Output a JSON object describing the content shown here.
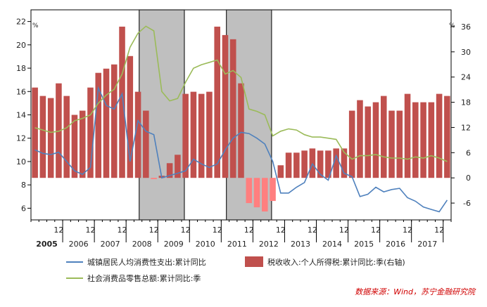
{
  "chart_data": {
    "type": "bar+line",
    "left_axis": {
      "unit": "%",
      "range": [
        5,
        23
      ],
      "ticks": [
        6,
        8,
        10,
        12,
        14,
        16,
        18,
        20,
        22
      ]
    },
    "right_axis": {
      "unit": "%",
      "range": [
        -10,
        40
      ],
      "ticks": [
        -6,
        0,
        6,
        12,
        18,
        24,
        30,
        36
      ]
    },
    "x_month_label": "12",
    "years": [
      "2005",
      "2006",
      "2007",
      "2008",
      "2009",
      "2010",
      "2011",
      "2012",
      "2013",
      "2014",
      "2015",
      "2016",
      "2017"
    ],
    "shaded_periods": [
      {
        "from_index": 14,
        "to_index": 18
      },
      {
        "from_index": 25,
        "to_index": 29
      }
    ],
    "series": [
      {
        "name": "税收收入:个人所得税:累计同比:季(右轴)",
        "kind": "bar",
        "axis": "right",
        "color": "#c0504d",
        "negative_color": "#ff7f7f",
        "values": [
          21.5,
          19.5,
          19.0,
          22.5,
          19.5,
          15.0,
          16.0,
          21.5,
          25.0,
          26.0,
          27.0,
          36.0,
          29.0,
          20.5,
          16.0,
          -0.3,
          0.5,
          3.5,
          5.5,
          20.0,
          20.5,
          20.0,
          20.5,
          36.0,
          34.0,
          33.0,
          22.5,
          -6.0,
          -7.0,
          -8.0,
          -5.5,
          3.0,
          6.0,
          6.0,
          6.5,
          7.0,
          6.5,
          6.5,
          7.0,
          7.0,
          16.0,
          18.5,
          17.0,
          18.0,
          19.5,
          16.0,
          16.0,
          20.0,
          18.0,
          18.0,
          18.0,
          20.0,
          19.5
        ]
      },
      {
        "name": "城镇居民人均消费性支出:累计同比",
        "kind": "line",
        "axis": "left",
        "color": "#4f81bd",
        "values": [
          11.0,
          10.7,
          10.6,
          10.8,
          10.0,
          9.2,
          8.9,
          9.5,
          16.3,
          14.8,
          14.5,
          15.8,
          10.0,
          13.5,
          12.6,
          12.3,
          8.6,
          8.8,
          9.0,
          9.2,
          10.2,
          9.8,
          9.5,
          9.8,
          11.0,
          12.0,
          12.5,
          12.4,
          12.0,
          11.5,
          10.0,
          7.3,
          7.3,
          7.8,
          8.2,
          9.8,
          8.9,
          8.4,
          10.5,
          9.0,
          8.7,
          7.0,
          7.2,
          7.8,
          7.4,
          7.6,
          7.7,
          6.9,
          6.6,
          6.1,
          5.9,
          5.7,
          6.7
        ]
      },
      {
        "name": "社会消费品零售总额:累计同比:季",
        "kind": "line",
        "axis": "left",
        "color": "#9bbb59",
        "values": [
          12.9,
          12.7,
          12.5,
          12.6,
          12.9,
          13.5,
          13.7,
          14.0,
          15.0,
          15.7,
          16.2,
          17.5,
          19.8,
          21.0,
          21.6,
          21.2,
          16.0,
          15.2,
          15.4,
          16.8,
          18.0,
          18.3,
          18.5,
          18.7,
          17.5,
          17.8,
          17.2,
          14.5,
          14.3,
          14.0,
          12.2,
          12.6,
          12.8,
          12.7,
          12.3,
          12.1,
          12.1,
          12.0,
          11.9,
          10.8,
          10.2,
          10.5,
          10.5,
          10.6,
          10.4,
          10.3,
          10.3,
          10.2,
          10.4,
          10.3,
          10.5,
          10.3,
          10.0
        ]
      }
    ],
    "legend": [
      {
        "label": "城镇居民人均消费性支出:累计同比",
        "kind": "line",
        "color": "#4f81bd"
      },
      {
        "label": "税收收入:个人所得税:累计同比:季(右轴)",
        "kind": "bar",
        "color": "#c0504d"
      },
      {
        "label": "社会消费品零售总额:累计同比:季",
        "kind": "line",
        "color": "#9bbb59"
      }
    ],
    "source": "数据来源：Wind，苏宁金融研究院"
  }
}
